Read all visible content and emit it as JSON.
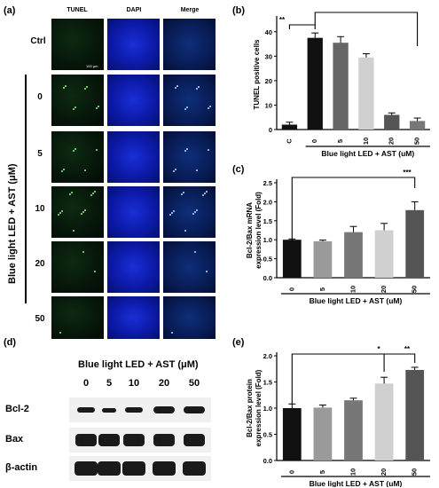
{
  "panel_a": {
    "label": "(a)",
    "columns": [
      "TUNEL",
      "DAPI",
      "Merge"
    ],
    "rows": [
      "Ctrl",
      "0",
      "5",
      "10",
      "20",
      "50"
    ],
    "side_label": "Blue light LED + AST (μM)",
    "scale_bar": "100 μm"
  },
  "panel_b": {
    "label": "(b)",
    "significance": [
      "**",
      "*"
    ]
  },
  "panel_c": {
    "label": "(c)",
    "significance": [
      "***"
    ]
  },
  "panel_d": {
    "label": "(d)",
    "header": "Blue light LED + AST (μM)",
    "doses": [
      "0",
      "5",
      "10",
      "20",
      "50"
    ],
    "bands": [
      "Bcl-2",
      "Bax",
      "β-actin"
    ]
  },
  "panel_e": {
    "label": "(e)",
    "significance": [
      "*",
      "**"
    ]
  },
  "chart_data": [
    {
      "type": "bar",
      "panel": "(b)",
      "ylabel": "TUNEL positive cells",
      "xlabel": "Blue light LED + AST (uM)",
      "categories": [
        "C",
        "0",
        "5",
        "10",
        "20",
        "50"
      ],
      "values": [
        2,
        37.5,
        35.5,
        29.5,
        6,
        3.5
      ],
      "errors": [
        1,
        2,
        2.5,
        1.5,
        0.8,
        1.2
      ],
      "yticks": [
        "0",
        "10",
        "20",
        "30",
        "40"
      ],
      "ylim": [
        0,
        45
      ],
      "colors": [
        "#111111",
        "#111111",
        "#666666",
        "#d0d0d0",
        "#555555",
        "#777777"
      ]
    },
    {
      "type": "bar",
      "panel": "(c)",
      "ylabel": "Bcl-2/Bax mRNA expression level (Fold)",
      "xlabel": "Blue light LED + AST (uM)",
      "categories": [
        "0",
        "5",
        "10",
        "20",
        "50"
      ],
      "values": [
        1.0,
        0.96,
        1.2,
        1.25,
        1.78
      ],
      "errors": [
        0.02,
        0.03,
        0.15,
        0.18,
        0.22
      ],
      "yticks": [
        "0.0",
        "0.5",
        "1.0",
        "1.5",
        "2.0",
        "2.5"
      ],
      "ylim": [
        0,
        2.5
      ],
      "colors": [
        "#111111",
        "#9a9a9a",
        "#777777",
        "#d0d0d0",
        "#555555"
      ]
    },
    {
      "type": "bar",
      "panel": "(e)",
      "ylabel": "Bcl-2/Bax protein expression level (Fold)",
      "xlabel": "Blue light LED + AST (uM)",
      "categories": [
        "0",
        "5",
        "10",
        "20",
        "50"
      ],
      "values": [
        1.0,
        1.01,
        1.15,
        1.47,
        1.73
      ],
      "errors": [
        0.08,
        0.05,
        0.04,
        0.12,
        0.05
      ],
      "yticks": [
        "0.0",
        "0.5",
        "1.0",
        "1.5",
        "2.0"
      ],
      "ylim": [
        0,
        2.0
      ],
      "colors": [
        "#111111",
        "#9a9a9a",
        "#777777",
        "#d0d0d0",
        "#555555"
      ]
    }
  ]
}
